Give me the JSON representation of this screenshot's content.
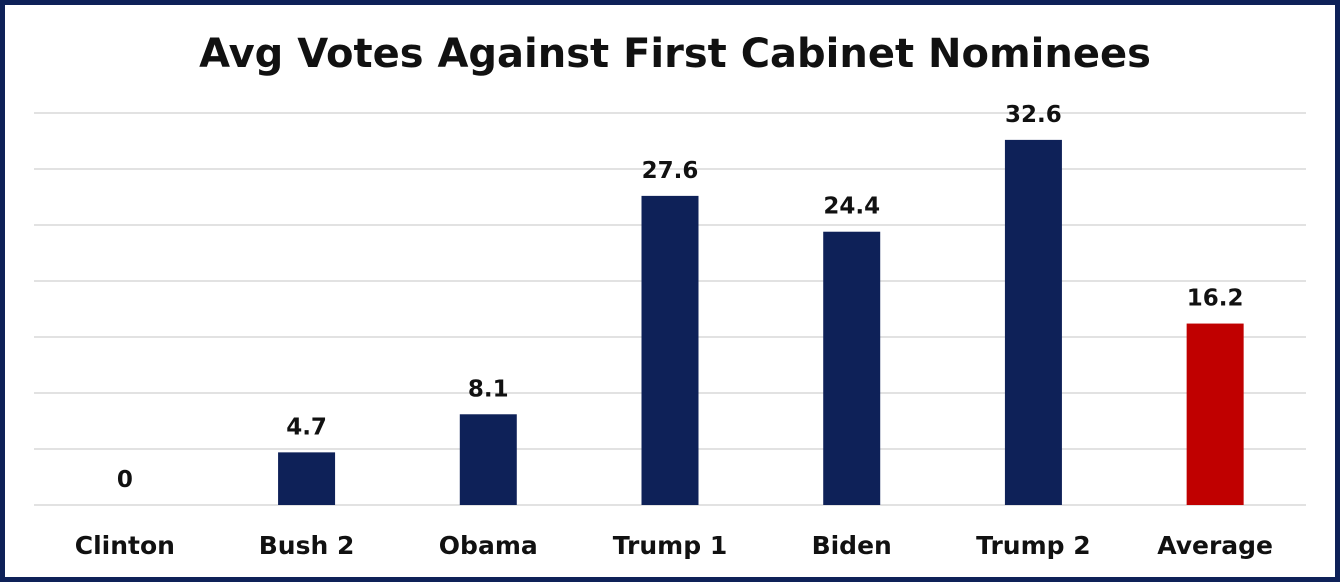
{
  "chart_data": {
    "type": "bar",
    "title": "Avg Votes Against First Cabinet Nominees",
    "xlabel": "",
    "ylabel": "",
    "categories": [
      "Clinton",
      "Bush 2",
      "Obama",
      "Trump 1",
      "Biden",
      "Trump 2",
      "Average"
    ],
    "values": [
      0,
      4.7,
      8.1,
      27.6,
      24.4,
      32.6,
      16.2
    ],
    "value_labels": [
      "0",
      "4.7",
      "8.1",
      "27.6",
      "24.4",
      "32.6",
      "16.2"
    ],
    "ylim": [
      0,
      35
    ],
    "grid": true,
    "legend": "none",
    "colors": {
      "default_bar": "#0e2158",
      "highlight_bar": "#c00000",
      "frame": "#0e2158",
      "gridline": "#d9d9d9"
    },
    "highlight_index": 6
  }
}
